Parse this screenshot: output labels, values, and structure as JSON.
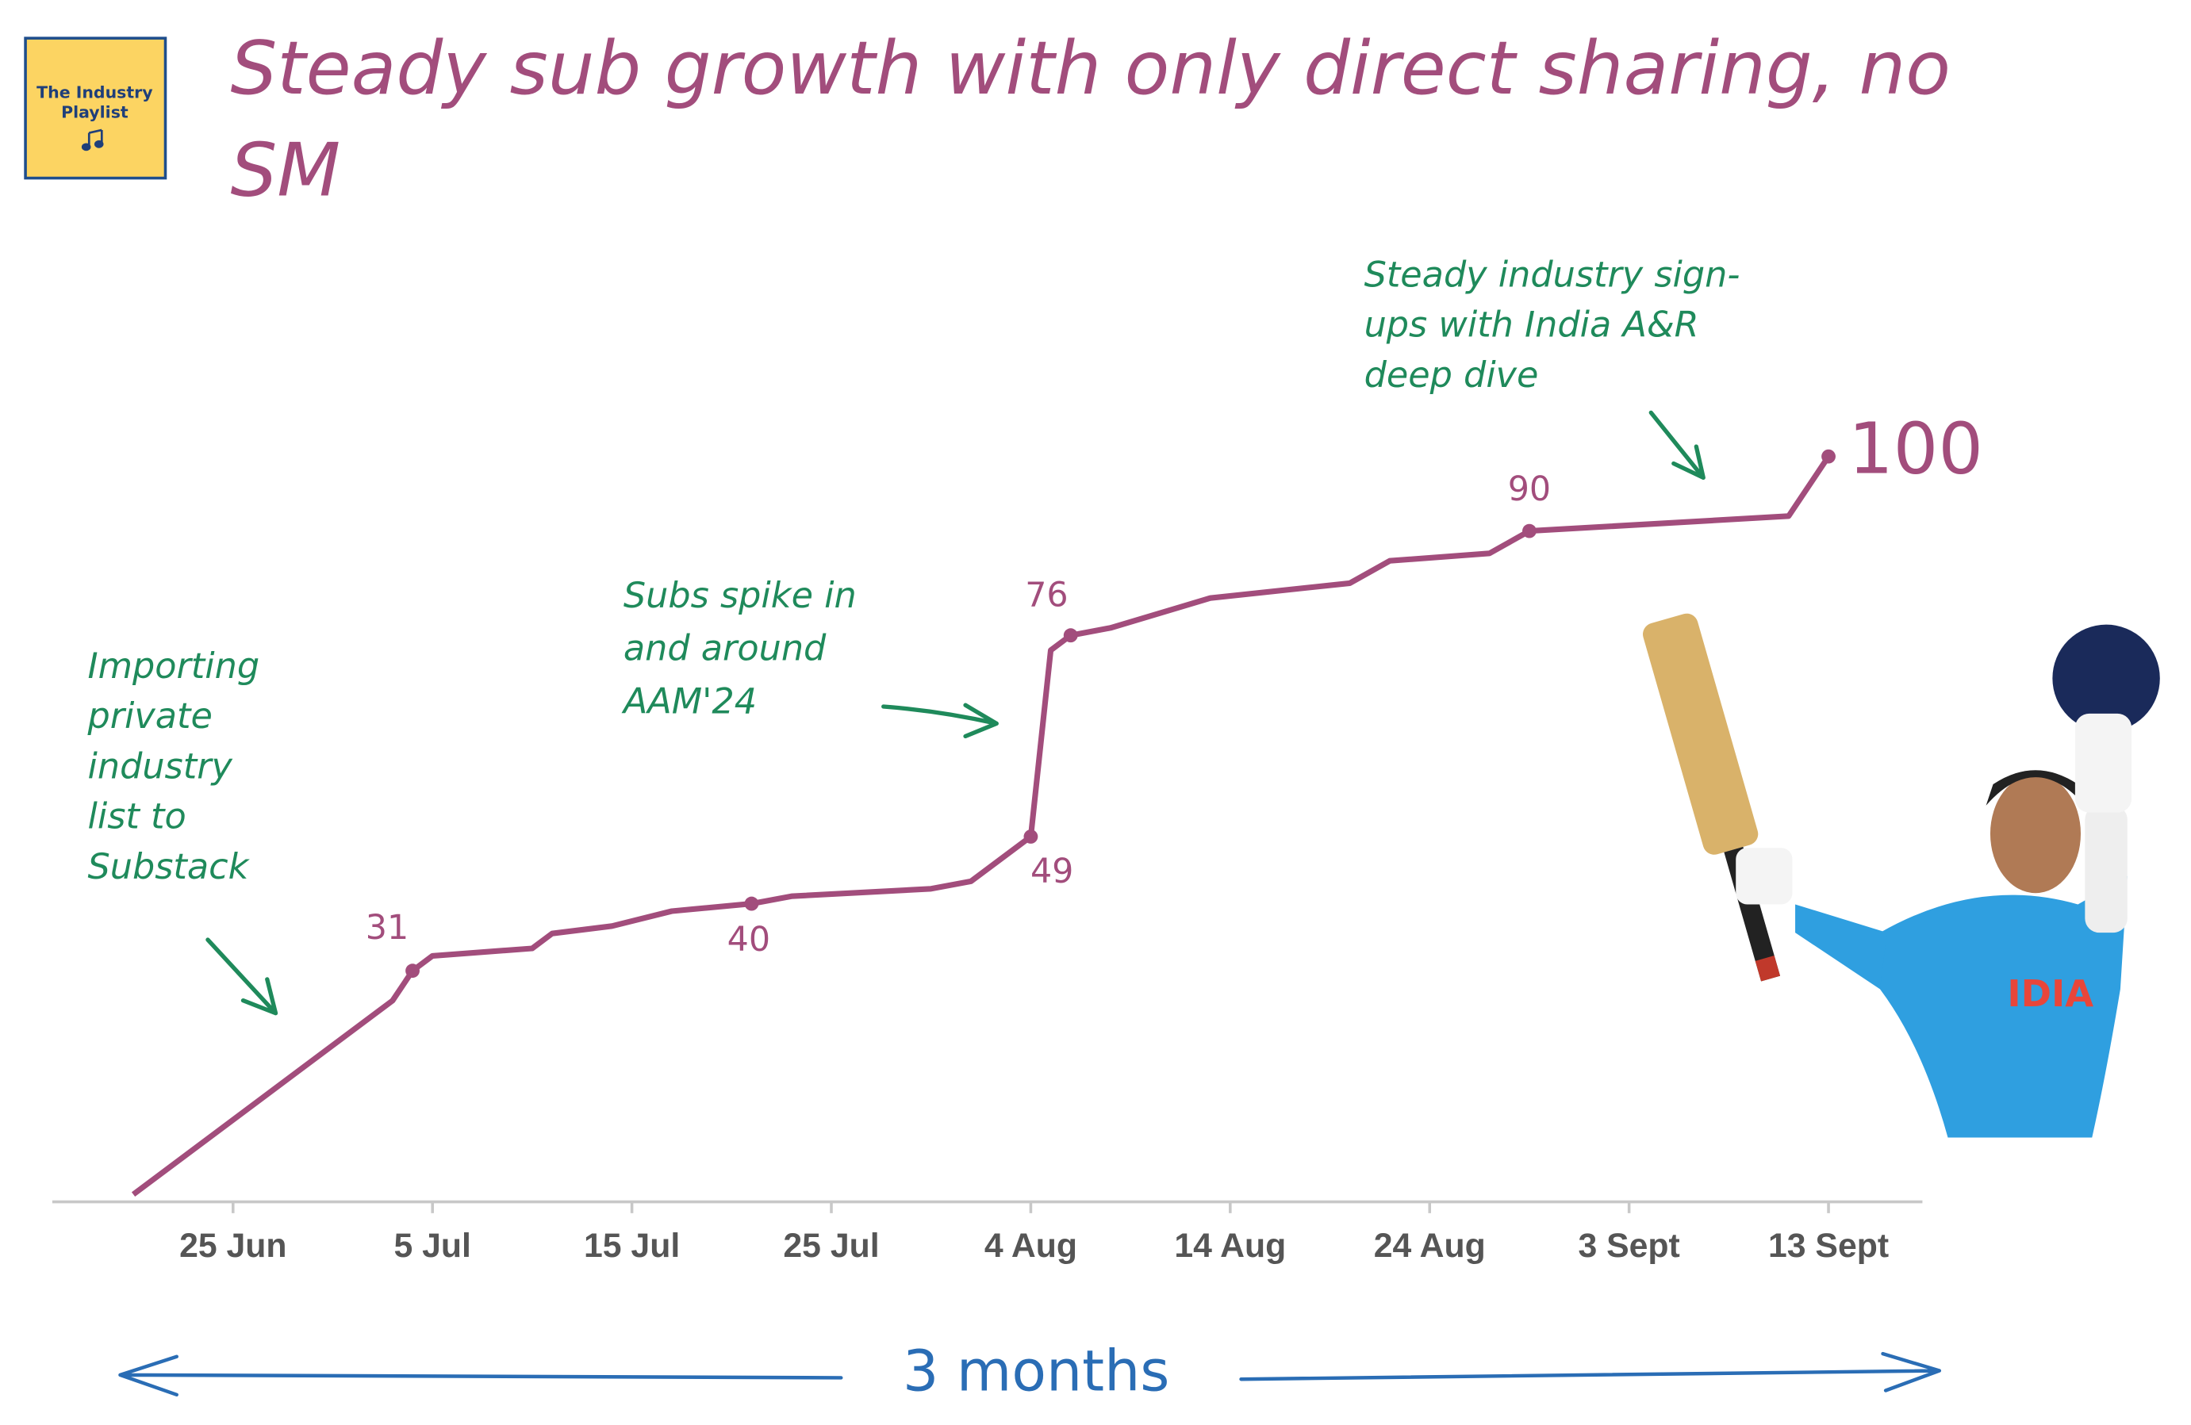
{
  "chart_data": {
    "type": "line",
    "title": [
      "Steady sub growth with only direct sharing, no",
      "SM"
    ],
    "logo": [
      "The Industry",
      "Playlist"
    ],
    "x": [
      "20 Jun",
      "3 Jul",
      "4 Jul",
      "5 Jul",
      "10 Jul",
      "11 Jul",
      "14 Jul",
      "17 Jul",
      "21 Jul",
      "23 Jul",
      "30 Jul",
      "1 Aug",
      "4 Aug",
      "5 Aug",
      "6 Aug",
      "8 Aug",
      "13 Aug",
      "20 Aug",
      "22 Aug",
      "27 Aug",
      "29 Aug",
      "11 Sept",
      "13 Sept"
    ],
    "values": [
      1,
      27,
      31,
      33,
      34,
      36,
      37,
      39,
      40,
      41,
      42,
      43,
      49,
      74,
      76,
      77,
      81,
      83,
      86,
      87,
      90,
      92,
      100
    ],
    "value_labels": [
      null,
      null,
      "31",
      null,
      null,
      null,
      null,
      null,
      "40",
      null,
      null,
      null,
      "49",
      null,
      "76",
      null,
      null,
      null,
      null,
      null,
      "90",
      null,
      "100"
    ],
    "color": "#a24d7c",
    "xlim": [
      "17 Jun",
      "17 Sept"
    ],
    "xticks": [
      "25 Jun",
      "5 Jul",
      "15 Jul",
      "25 Jul",
      "4 Aug",
      "14 Aug",
      "24 Aug",
      "3 Sept",
      "13 Sept"
    ],
    "ylim": [
      0,
      104
    ],
    "annotations": [
      [
        "Importing",
        "private",
        "industry",
        "list to",
        "Substack"
      ],
      [
        "Subs spike in",
        "and around",
        "AAM'24"
      ],
      [
        "Steady industry sign-",
        "ups with India A&R",
        "deep dive"
      ]
    ],
    "span_label": "3 months"
  }
}
